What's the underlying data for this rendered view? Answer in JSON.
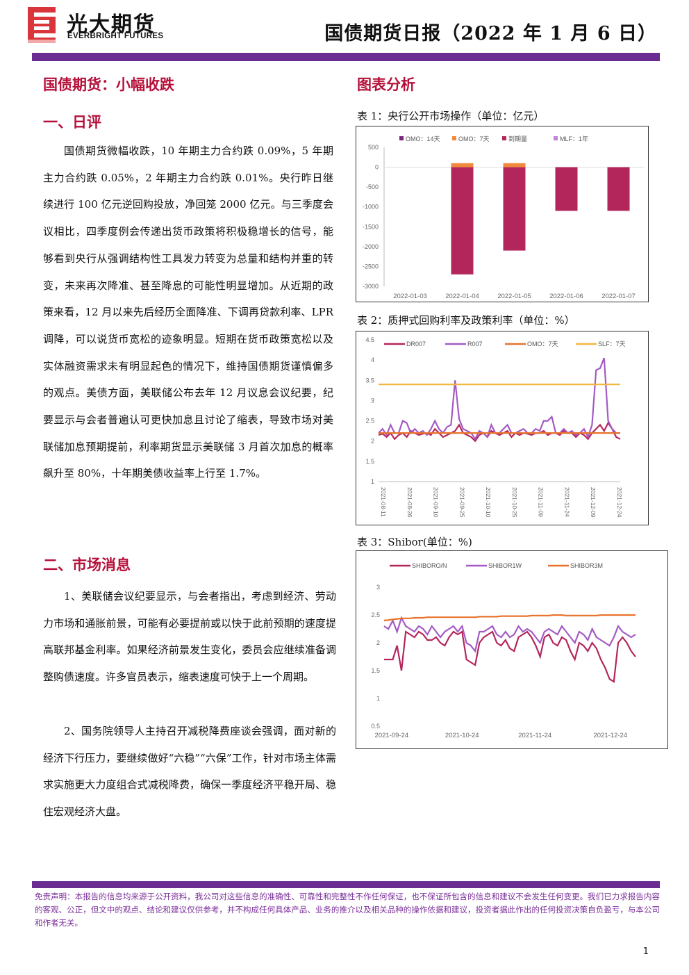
{
  "header": {
    "logo_cn": "光大期货",
    "logo_en": "EVERBRIGHT FUTURES",
    "report_title": "国债期货日报（2022 年 1 月 6 日）"
  },
  "left": {
    "headline": "国债期货：小幅收跌",
    "section1_title": "一、日评",
    "section1_body": "国债期货微幅收跌，10 年期主力合约跌 0.09%，5 年期主力合约跌 0.05%，2 年期主力合约跌 0.01%。央行昨日继续进行 100 亿元逆回购投放，净回笼 2000 亿元。与三季度会议相比，四季度例会传递出货币政策将积极稳增长的信号，能够看到央行从强调结构性工具发力转变为总量和结构并重的转变，未来再次降准、甚至降息的可能性明显增加。从近期的政策来看，12 月以来先后经历全面降准、下调再贷款利率、LPR 调降，可以说货币宽松的迹象明显。短期在货币政策宽松以及实体融资需求未有明显起色的情况下，维持国债期货谨慎偏多的观点。美债方面，美联储公布去年 12 月议息会议纪要，纪要显示与会者普遍认可更快加息且讨论了缩表，导致市场对美联储加息预期提前，利率期货显示美联储 3 月首次加息的概率飙升至 80%，十年期美债收益率上行至 1.7%。",
    "section2_title": "二、市场消息",
    "news_1": "1、美联储会议纪要显示，与会者指出，考虑到经济、劳动力市场和通胀前景，可能有必要提前或以快于此前预期的速度提高联邦基金利率。如果经济前景发生变化，委员会应继续准备调整购债速度。许多官员表示，缩表速度可快于上一个周期。",
    "news_2": "2、国务院领导人主持召开减税降费座谈会强调，面对新的经济下行压力，要继续做好“六稳”“六保”工作，针对市场主体需求实施更大力度组合式减税降费，确保一季度经济平稳开局、稳住宏观经济大盘。"
  },
  "right": {
    "title": "图表分析",
    "chart1_caption": "表 1：央行公开市场操作（单位：亿元）",
    "chart2_caption": "表 2：质押式回购利率及政策利率（单位：%）",
    "chart3_caption": "表 3：Shibor(单位：%)"
  },
  "chart_data": [
    {
      "type": "bar",
      "categories": [
        "2022-01-03",
        "2022-01-04",
        "2022-01-05",
        "2022-01-06",
        "2022-01-07"
      ],
      "series": [
        {
          "name": "OMO：14天",
          "color": "#7b2580",
          "values": [
            0,
            0,
            0,
            0,
            0
          ]
        },
        {
          "name": "OMO：7天",
          "color": "#f0893c",
          "values": [
            0,
            100,
            100,
            0,
            0
          ]
        },
        {
          "name": "到期量",
          "color": "#b3265c",
          "values": [
            0,
            -2700,
            -2100,
            -1100,
            -1100
          ]
        },
        {
          "name": "MLF：1年",
          "color": "#c084d8",
          "values": [
            0,
            0,
            0,
            0,
            0
          ]
        }
      ],
      "ylim": [
        -3000,
        500
      ],
      "yticks": [
        500,
        0,
        -500,
        -1000,
        -1500,
        -2000,
        -2500,
        -3000
      ]
    },
    {
      "type": "line",
      "x_ticks": [
        "2021-08-11",
        "2021-08-26",
        "2021-09-10",
        "2021-09-25",
        "2021-10-10",
        "2021-10-25",
        "2021-11-09",
        "2021-11-24",
        "2021-12-09",
        "2021-12-24"
      ],
      "ylim": [
        1,
        4.5
      ],
      "yticks": [
        4.5,
        4,
        3.5,
        3,
        2.5,
        2,
        1.5,
        1
      ],
      "series": [
        {
          "name": "DR007",
          "color": "#b3265c",
          "values": [
            2.15,
            2.18,
            2.1,
            2.2,
            2.05,
            2.15,
            2.2,
            2.1,
            2.25,
            2.2,
            2.15,
            2.18,
            2.2,
            2.15,
            2.3,
            2.2,
            2.1,
            2.15,
            2.2,
            2.25,
            2.4,
            2.2,
            2.15,
            2.1,
            2.0,
            2.15,
            2.2,
            2.1,
            2.25,
            2.2,
            2.15,
            2.2,
            2.25,
            2.1,
            2.2,
            2.15,
            2.2,
            2.18,
            2.15,
            2.2,
            2.2,
            2.25,
            2.15,
            2.2,
            2.2,
            2.15,
            2.25,
            2.2,
            2.2,
            2.1,
            2.2,
            2.15,
            2.05,
            2.2,
            2.3,
            2.4,
            2.25,
            2.45,
            2.3,
            2.1,
            2.05
          ]
        },
        {
          "name": "R007",
          "color": "#a35ac4",
          "values": [
            2.2,
            2.3,
            2.15,
            2.4,
            2.2,
            2.2,
            2.5,
            2.45,
            2.2,
            2.3,
            2.2,
            2.25,
            2.15,
            2.3,
            2.5,
            2.3,
            2.2,
            2.35,
            2.4,
            3.5,
            2.55,
            2.3,
            2.25,
            2.2,
            2.05,
            2.25,
            2.2,
            2.1,
            2.4,
            2.2,
            2.2,
            2.3,
            2.4,
            2.2,
            2.2,
            2.25,
            2.3,
            2.2,
            2.2,
            2.3,
            2.25,
            2.5,
            2.5,
            2.6,
            2.2,
            2.2,
            2.3,
            2.2,
            2.25,
            2.15,
            2.2,
            2.3,
            2.1,
            2.4,
            3.75,
            3.8,
            4.05,
            2.5,
            2.3,
            2.2,
            2.2
          ]
        },
        {
          "name": "OMO：7天",
          "color": "#e8732d",
          "values": [
            2.2,
            2.2
          ]
        },
        {
          "name": "SLF：7天",
          "color": "#f0b840",
          "values": [
            3.4,
            3.4
          ]
        }
      ]
    },
    {
      "type": "line",
      "x_ticks": [
        "2021-09-24",
        "2021-10-24",
        "2021-11-24",
        "2021-12-24"
      ],
      "ylim": [
        0.5,
        3
      ],
      "yticks": [
        3,
        2.5,
        2,
        1.5,
        1,
        0.5
      ],
      "series": [
        {
          "name": "SHIBORO/N",
          "color": "#b3265c",
          "values": [
            1.7,
            1.7,
            1.7,
            1.95,
            1.5,
            2.2,
            2.15,
            2.1,
            2.2,
            2.15,
            2.05,
            2.05,
            2.1,
            2.0,
            1.95,
            2.1,
            2.2,
            2.15,
            2.2,
            1.7,
            1.65,
            1.6,
            2.0,
            2.1,
            2.15,
            2.2,
            2.0,
            1.95,
            2.05,
            1.9,
            1.85,
            2.1,
            2.15,
            2.2,
            2.1,
            1.95,
            1.75,
            2.1,
            2.15,
            2.0,
            1.95,
            2.1,
            2.05,
            1.85,
            1.7,
            2.0,
            1.95,
            1.85,
            2.0,
            1.9,
            1.7,
            1.55,
            1.35,
            1.3,
            2.0,
            2.1,
            2.0,
            1.85,
            1.75
          ]
        },
        {
          "name": "SHIBOR1W",
          "color": "#a35ac4",
          "values": [
            2.3,
            2.25,
            2.4,
            2.2,
            2.45,
            2.3,
            2.25,
            2.2,
            2.3,
            2.25,
            2.15,
            2.3,
            2.2,
            2.1,
            2.2,
            2.25,
            2.3,
            2.2,
            2.3,
            2.0,
            1.95,
            1.85,
            2.2,
            2.2,
            2.25,
            2.3,
            2.15,
            2.1,
            2.2,
            2.1,
            2.15,
            2.3,
            2.2,
            2.25,
            2.2,
            2.1,
            2.0,
            2.2,
            2.25,
            2.2,
            2.15,
            2.3,
            2.2,
            2.1,
            2.0,
            2.2,
            2.15,
            2.05,
            2.25,
            2.1,
            2.05,
            2.0,
            1.95,
            2.1,
            2.3,
            2.2,
            2.15,
            2.1,
            2.15
          ]
        },
        {
          "name": "SHIBOR3M",
          "color": "#e8732d",
          "values": [
            2.4,
            2.41,
            2.42,
            2.43,
            2.44,
            2.44,
            2.44,
            2.45,
            2.45,
            2.45,
            2.46,
            2.46,
            2.46,
            2.46,
            2.46,
            2.46,
            2.46,
            2.46,
            2.46,
            2.46,
            2.46,
            2.46,
            2.47,
            2.47,
            2.47,
            2.47,
            2.47,
            2.48,
            2.48,
            2.48,
            2.48,
            2.48,
            2.48,
            2.48,
            2.49,
            2.49,
            2.49,
            2.49,
            2.49,
            2.5,
            2.5,
            2.5,
            2.49,
            2.49,
            2.49,
            2.49,
            2.49,
            2.49,
            2.49,
            2.49,
            2.5,
            2.5,
            2.5,
            2.5,
            2.5,
            2.5,
            2.5,
            2.5,
            2.5
          ]
        }
      ]
    }
  ],
  "footer": {
    "disclaimer": "免责声明：本报告的信息均来源于公开资料，我公司对这些信息的准确性、可靠性和完整性不作任何保证，也不保证所包含的信息和建议不会发生任何变更。我们已力求报告内容的客观、公正，但文中的观点、结论和建议仅供参考，并不构成任何具体产品、业务的推介以及相关品种的操作依据和建议，投资者据此作出的任何投资决策自负盈亏，与本公司和作者无关。",
    "page": "1"
  },
  "colors": {
    "brand_purple": "#6a2c91",
    "title_red": "#b5103a",
    "logo_red": "#d8363a"
  }
}
